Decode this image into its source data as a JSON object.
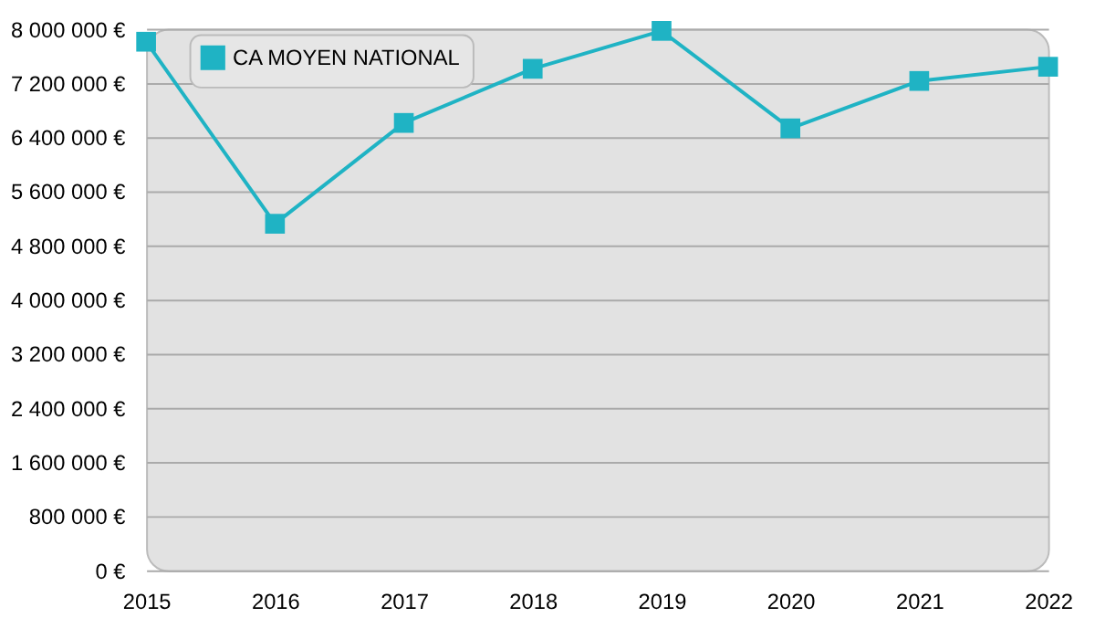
{
  "chart_data": {
    "type": "line",
    "x": [
      2015,
      2016,
      2017,
      2018,
      2019,
      2020,
      2021,
      2022
    ],
    "series": [
      {
        "name": "CA MOYEN NATIONAL",
        "color": "#1fb3c4",
        "values": [
          7810000,
          5120000,
          6610000,
          7410000,
          7970000,
          6530000,
          7230000,
          7440000
        ]
      }
    ],
    "xlim": [
      2015,
      2022
    ],
    "xticks": [
      2015,
      2016,
      2017,
      2018,
      2019,
      2020,
      2021,
      2022
    ],
    "ylim": [
      0,
      8000000
    ],
    "yticks": [
      {
        "value": 0,
        "label": "0 €"
      },
      {
        "value": 800000,
        "label": "800 000 €"
      },
      {
        "value": 1600000,
        "label": "1 600 000 €"
      },
      {
        "value": 2400000,
        "label": "2 400 000 €"
      },
      {
        "value": 3200000,
        "label": "3 200 000 €"
      },
      {
        "value": 4000000,
        "label": "4 000 000 €"
      },
      {
        "value": 4800000,
        "label": "4 800 000 €"
      },
      {
        "value": 5600000,
        "label": "5 600 000 €"
      },
      {
        "value": 6400000,
        "label": "6 400 000 €"
      },
      {
        "value": 7200000,
        "label": "7 200 000 €"
      },
      {
        "value": 8000000,
        "label": "8 000 000 €"
      }
    ],
    "grid": "y",
    "legend": "top left",
    "marker": "square",
    "line_style": "solid"
  }
}
